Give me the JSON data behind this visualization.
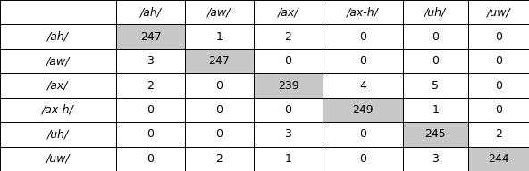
{
  "col_headers": [
    "",
    "/ah/",
    "/aw/",
    "/ax/",
    "/ax-h/",
    "/uh/",
    "/uw/"
  ],
  "row_headers": [
    "/ah/",
    "/aw/",
    "/ax/",
    "/ax-h/",
    "/uh/",
    "/uw/"
  ],
  "table_data": [
    [
      247,
      1,
      2,
      0,
      0,
      0
    ],
    [
      3,
      247,
      0,
      0,
      0,
      0
    ],
    [
      2,
      0,
      239,
      4,
      5,
      0
    ],
    [
      0,
      0,
      0,
      249,
      1,
      0
    ],
    [
      0,
      0,
      3,
      0,
      245,
      2
    ],
    [
      0,
      2,
      1,
      0,
      3,
      244
    ]
  ],
  "diagonal_color": "#c8c8c8",
  "cell_bg": "#ffffff",
  "border_color": "#000000",
  "text_color": "#000000",
  "fontsize": 9,
  "fig_width": 5.92,
  "fig_height": 1.92,
  "dpi": 100
}
